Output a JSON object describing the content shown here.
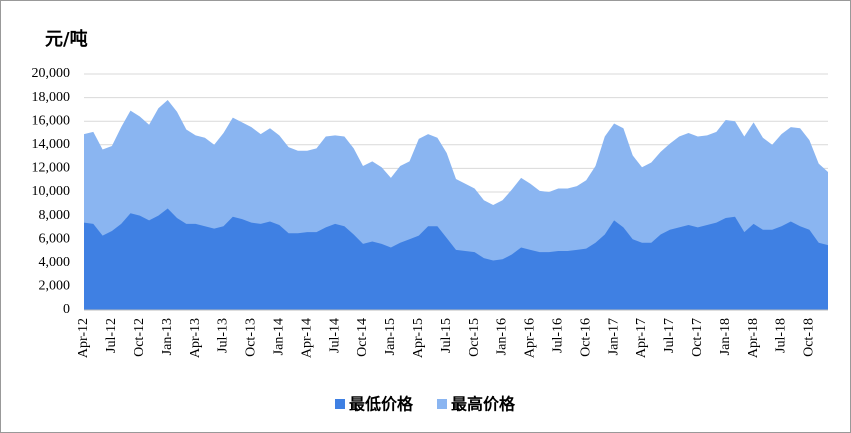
{
  "chart_data": {
    "type": "area",
    "y_label": "元/吨",
    "categories": [
      "Apr-12",
      null,
      null,
      "Jul-12",
      null,
      null,
      "Oct-12",
      null,
      null,
      "Jan-13",
      null,
      null,
      "Apr-13",
      null,
      null,
      "Jul-13",
      null,
      null,
      "Oct-13",
      null,
      null,
      "Jan-14",
      null,
      null,
      "Apr-14",
      null,
      null,
      "Jul-14",
      null,
      null,
      "Oct-14",
      null,
      null,
      "Jan-15",
      null,
      null,
      "Apr-15",
      null,
      null,
      "Jul-15",
      null,
      null,
      "Oct-15",
      null,
      null,
      "Jan-16",
      null,
      null,
      "Apr-16",
      null,
      null,
      "Jul-16",
      null,
      null,
      "Oct-16",
      null,
      null,
      "Jan-17",
      null,
      null,
      "Apr-17",
      null,
      null,
      "Jul-17",
      null,
      null,
      "Oct-17",
      null,
      null,
      "Jan-18",
      null,
      null,
      "Apr-18",
      null,
      null,
      "Jul-18",
      null,
      null,
      "Oct-18",
      null,
      null
    ],
    "series": [
      {
        "name": "最低价格",
        "color": "#3f80e3",
        "values": [
          7400,
          7300,
          6300,
          6700,
          7300,
          8200,
          8000,
          7600,
          8000,
          8600,
          7800,
          7300,
          7300,
          7100,
          6900,
          7100,
          7900,
          7700,
          7400,
          7300,
          7500,
          7200,
          6500,
          6500,
          6600,
          6600,
          7000,
          7300,
          7100,
          6400,
          5600,
          5800,
          5600,
          5300,
          5700,
          6000,
          6300,
          7100,
          7100,
          6100,
          5100,
          5000,
          4900,
          4400,
          4200,
          4300,
          4700,
          5300,
          5100,
          4900,
          4900,
          5000,
          5000,
          5100,
          5200,
          5700,
          6400,
          7600,
          7000,
          6000,
          5700,
          5700,
          6400,
          6800,
          7000,
          7200,
          7000,
          7200,
          7400,
          7800,
          7900,
          6600,
          7300,
          6800,
          6800,
          7100,
          7500,
          7100,
          6800,
          5700,
          5500
        ]
      },
      {
        "name": "最高价格",
        "color": "#8ab5f1",
        "values": [
          14900,
          15100,
          13600,
          13900,
          15500,
          16900,
          16400,
          15700,
          17100,
          17800,
          16800,
          15300,
          14800,
          14600,
          14000,
          15000,
          16300,
          15900,
          15500,
          14900,
          15400,
          14800,
          13800,
          13500,
          13500,
          13700,
          14700,
          14800,
          14700,
          13700,
          12200,
          12600,
          12100,
          11200,
          12200,
          12600,
          14500,
          14900,
          14600,
          13300,
          11100,
          10700,
          10300,
          9300,
          8900,
          9300,
          10200,
          11200,
          10700,
          10100,
          10000,
          10300,
          10300,
          10500,
          11000,
          12200,
          14700,
          15800,
          15400,
          13100,
          12100,
          12500,
          13400,
          14100,
          14700,
          15000,
          14700,
          14800,
          15100,
          16100,
          16000,
          14700,
          15900,
          14600,
          14000,
          14900,
          15500,
          15400,
          14400,
          12400,
          11700
        ]
      }
    ],
    "ylim": [
      0,
      20000
    ],
    "yticks": [
      0,
      {
        "value": 2000,
        "label": "2,000"
      },
      {
        "value": 4000,
        "label": "4,000"
      },
      {
        "value": 6000,
        "label": "6,000"
      },
      {
        "value": 8000,
        "label": "8,000"
      },
      {
        "value": 10000,
        "label": "10,000"
      },
      {
        "value": 12000,
        "label": "12,000"
      },
      {
        "value": 14000,
        "label": "14,000"
      },
      {
        "value": 16000,
        "label": "16,000"
      },
      {
        "value": 18000,
        "label": "18,000"
      },
      {
        "value": 20000,
        "label": "20,000"
      }
    ],
    "grid": true
  }
}
